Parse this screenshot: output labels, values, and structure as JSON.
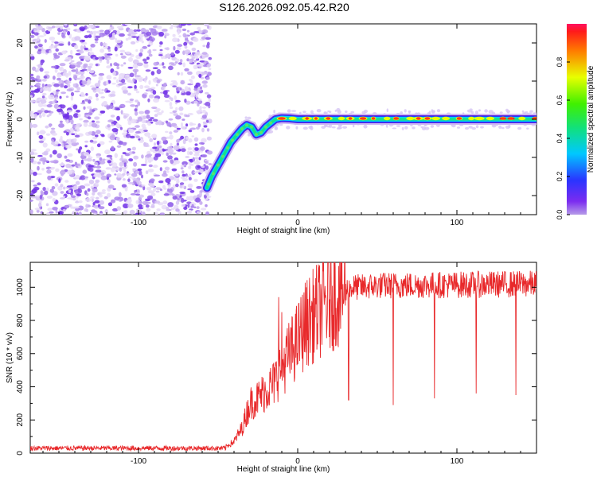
{
  "title": "S126.2026.092.05.42.R20",
  "chart_data": [
    {
      "type": "heatmap",
      "name": "spectrogram",
      "xlabel": "Height of straight line (km)",
      "ylabel": "Frequency (Hz)",
      "xlim": [
        -168,
        150
      ],
      "ylim": [
        -25,
        25
      ],
      "xticks": [
        -100,
        0,
        100
      ],
      "yticks": [
        -20,
        -10,
        0,
        10,
        20
      ],
      "noise_region_x": [
        -168,
        -55
      ],
      "ridge": {
        "x": [
          -57,
          -54,
          -50,
          -46,
          -42,
          -38,
          -35,
          -32,
          -29,
          -26,
          -23,
          -20,
          -17,
          -14,
          -10,
          -5,
          0,
          150
        ],
        "y": [
          -18,
          -15,
          -12,
          -9,
          -6,
          -4,
          -2.5,
          -1.5,
          -2,
          -4,
          -3.5,
          -2,
          -1,
          0,
          0.3,
          0.2,
          0,
          0
        ]
      },
      "colorbar": {
        "label": "Normalized spectral amplitude",
        "ticks": [
          "0.0",
          "0.2",
          "0.4",
          "0.6",
          "0.8"
        ],
        "range": [
          0,
          1
        ]
      }
    },
    {
      "type": "line",
      "name": "snr",
      "xlabel": "Height of straight line (km)",
      "ylabel": "SNR (10 * v/v)",
      "xlim": [
        -168,
        150
      ],
      "ylim": [
        0,
        1150
      ],
      "xticks": [
        -100,
        0,
        100
      ],
      "yticks": [
        0,
        200,
        400,
        600,
        800,
        1000
      ],
      "color": "#e8292b",
      "baseline": {
        "x": [
          -168,
          -45
        ],
        "level": 30
      },
      "envelope": {
        "x": [
          -45,
          -40,
          -35,
          -30,
          -25,
          -20,
          -15,
          -10,
          -5,
          0,
          5,
          10,
          15,
          20,
          25,
          30,
          35,
          40,
          50,
          150
        ],
        "y": [
          40,
          70,
          150,
          300,
          330,
          380,
          420,
          520,
          600,
          680,
          780,
          830,
          880,
          930,
          960,
          980,
          1000,
          1000,
          1010,
          1020
        ]
      },
      "spikes_up": [
        {
          "x": -12,
          "y": 940
        },
        {
          "x": -10,
          "y": 850
        }
      ],
      "dips": [
        {
          "x": 32,
          "y": 320
        },
        {
          "x": 60,
          "y": 290
        },
        {
          "x": 86,
          "y": 330
        },
        {
          "x": 112,
          "y": 360
        },
        {
          "x": 137,
          "y": 350
        }
      ]
    }
  ]
}
